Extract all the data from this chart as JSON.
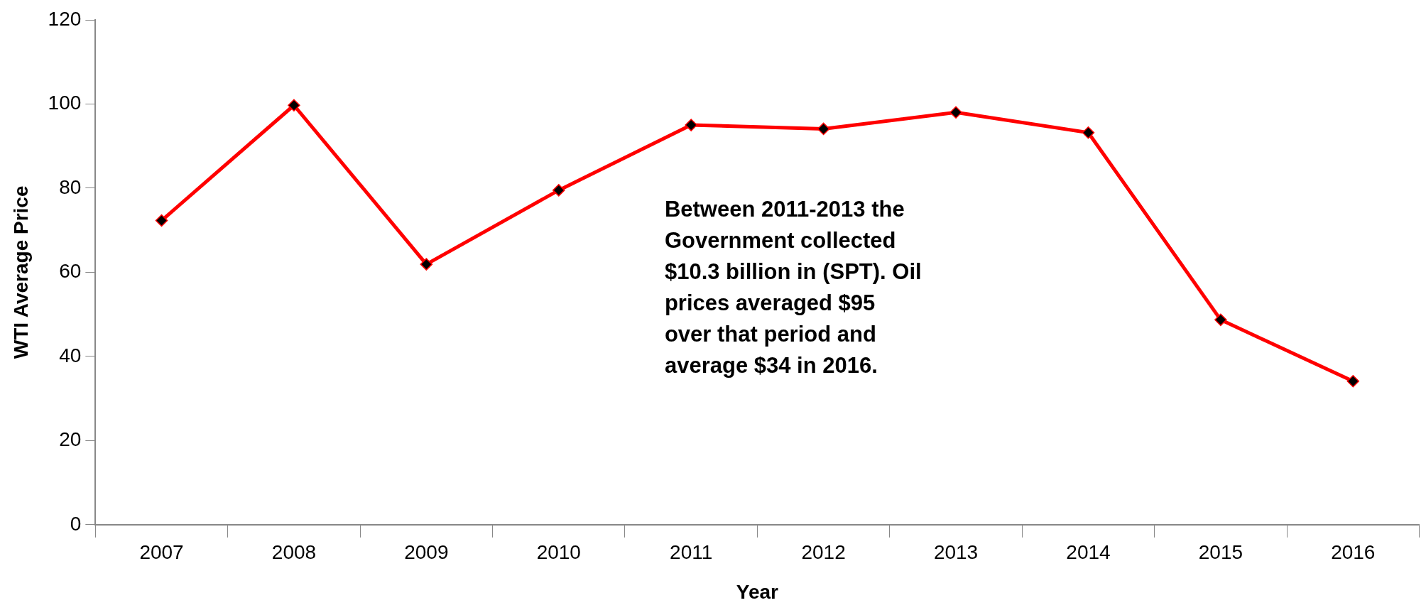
{
  "chart_data": {
    "type": "line",
    "xlabel": "Year",
    "ylabel": "WTI Average Price",
    "categories": [
      "2007",
      "2008",
      "2009",
      "2010",
      "2011",
      "2012",
      "2013",
      "2014",
      "2015",
      "2016"
    ],
    "series": [
      {
        "color": "#ff0000",
        "values": [
          72.3,
          99.7,
          61.9,
          79.5,
          95.0,
          94.1,
          98.0,
          93.2,
          48.7,
          34.1
        ]
      }
    ],
    "ylim": [
      0,
      120
    ],
    "yticks": [
      0,
      20,
      40,
      60,
      80,
      100,
      120
    ],
    "grid": false,
    "legend": false,
    "marker": "diamond",
    "line_style": "solid",
    "annotations": [
      "Between 2011-2013 the\nGovernment collected\n$10.3 billion in (SPT). Oil\nprices averaged $95\nover that period and\naverage $34 in 2016."
    ]
  }
}
